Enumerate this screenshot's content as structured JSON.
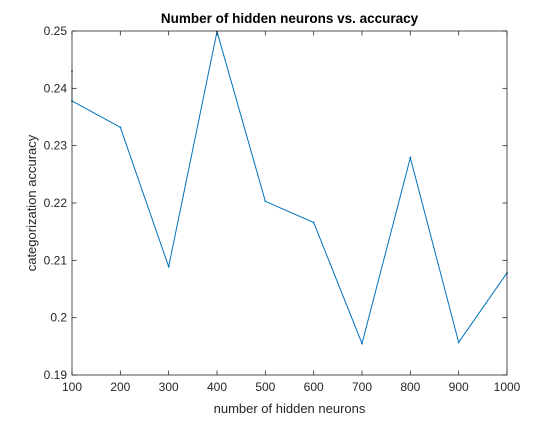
{
  "chart_data": {
    "type": "line",
    "title": "Number of hidden neurons vs. accuracy",
    "xlabel": "number of hidden neurons",
    "ylabel": "categorization accuracy",
    "xlim": [
      100,
      1000
    ],
    "ylim": [
      0.19,
      0.25
    ],
    "xticks": [
      100,
      200,
      300,
      400,
      500,
      600,
      700,
      800,
      900,
      1000
    ],
    "yticks": [
      0.19,
      0.2,
      0.21,
      0.22,
      0.23,
      0.24,
      0.25
    ],
    "ytick_labels": [
      "0.19",
      "0.2",
      "0.21",
      "0.22",
      "0.23",
      "0.24",
      "0.25"
    ],
    "grid": false,
    "series": [
      {
        "color": "#0072bd",
        "x": [
          100,
          100,
          200,
          300,
          400,
          500,
          600,
          700,
          800,
          900,
          1000
        ],
        "y": [
          0.243,
          0.2378,
          0.2332,
          0.2089,
          0.2499,
          0.2203,
          0.2166,
          0.1955,
          0.2279,
          0.1957,
          0.2078
        ]
      }
    ]
  }
}
